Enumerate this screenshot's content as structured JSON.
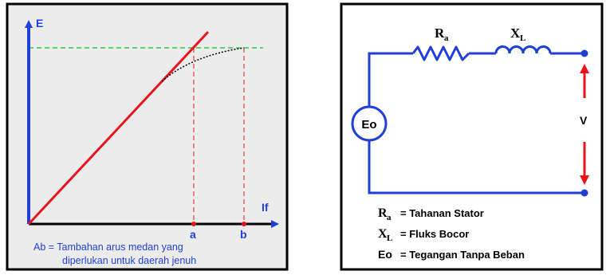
{
  "left_panel": {
    "y_axis_label": "E",
    "x_axis_label": "If",
    "tick_a": "a",
    "tick_b": "b",
    "caption_line1": "Ab = Tambahan arus medan yang",
    "caption_line2": "diperlukan untuk daerah jenuh",
    "colors": {
      "panel_bg": "#ececec",
      "axis": "#1f3fd8",
      "linear_line": "#e8141c",
      "saturation_curve": "#000000",
      "reference_dash": "#2ecc40",
      "drop_dash": "#e8141c",
      "caption": "#1f3fd8"
    }
  },
  "right_panel": {
    "resistor_label": "R",
    "resistor_sub": "a",
    "inductor_label": "X",
    "inductor_sub": "L",
    "source_label": "Eo",
    "voltage_label": "V",
    "legend": [
      {
        "sym": "R",
        "sub": "a",
        "text": "= Tahanan Stator"
      },
      {
        "sym": "X",
        "sub": "L",
        "text": "= Fluks Bocor"
      },
      {
        "sym": "Eo",
        "sub": "",
        "text": "= Tegangan Tanpa Beban"
      }
    ],
    "colors": {
      "wire": "#1f3fd8",
      "arrow": "#e8141c",
      "text": "#000000"
    }
  }
}
